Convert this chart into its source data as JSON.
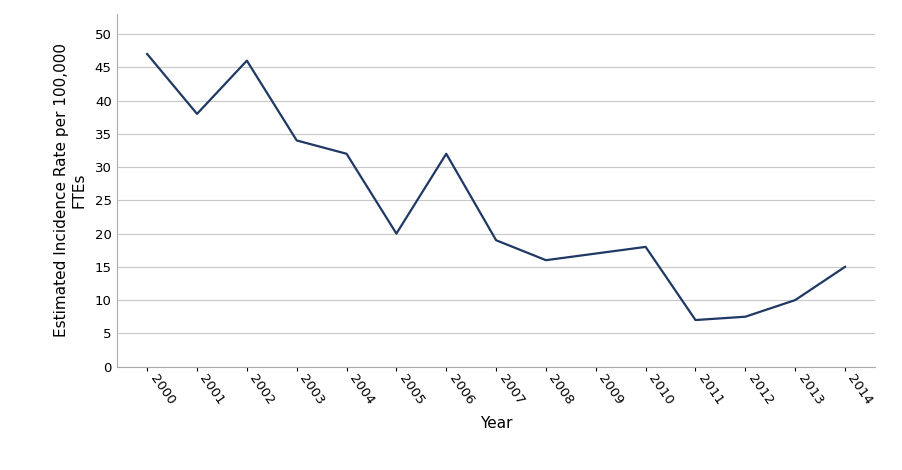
{
  "years": [
    2000,
    2001,
    2002,
    2003,
    2004,
    2005,
    2006,
    2007,
    2008,
    2009,
    2010,
    2011,
    2012,
    2013,
    2014
  ],
  "values": [
    47,
    38,
    46,
    34,
    32,
    20,
    32,
    19,
    16,
    17,
    18,
    7,
    7.5,
    10,
    15
  ],
  "line_color": "#1F3864",
  "line_width": 1.6,
  "ylabel_line1": "Estimated Incidence Rate per 100,000",
  "ylabel_line2": "FTEs",
  "xlabel": "Year",
  "ylim": [
    0,
    53
  ],
  "yticks": [
    0,
    5,
    10,
    15,
    20,
    25,
    30,
    35,
    40,
    45,
    50
  ],
  "background_color": "#ffffff",
  "grid_color": "#c8c8c8",
  "label_fontsize": 11,
  "tick_fontsize": 9.5,
  "xlim_left": 1999.4,
  "xlim_right": 2014.6
}
